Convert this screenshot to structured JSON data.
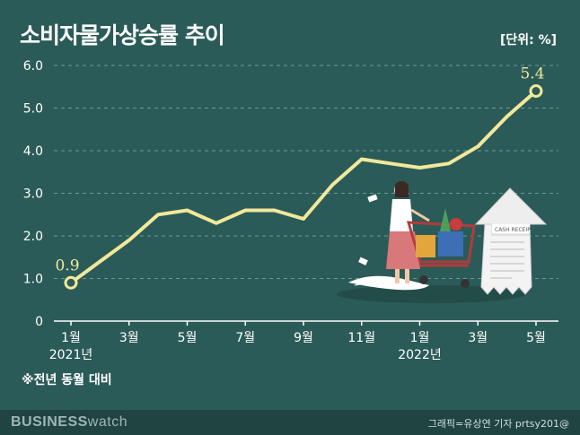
{
  "header": {
    "title": "소비자물가상승률 추이",
    "unit": "[단위: %]"
  },
  "note": "※전년 동월 대비",
  "footer": {
    "brand_bold": "BUSINESS",
    "brand_light": "watch",
    "credit": "그래픽=유상연 기자 prtsy201@"
  },
  "colors": {
    "background": "#2b5b58",
    "line": "#f2e89a",
    "footer": "#1f4442"
  },
  "illustration": "shopping-cart-receipt-illustration",
  "chart_data": {
    "type": "line",
    "title": "소비자물가상승률 추이",
    "xlabel": "",
    "ylabel": "",
    "ylim": [
      0,
      6.0
    ],
    "yticks": [
      "0",
      "1.0",
      "2.0",
      "3.0",
      "4.0",
      "5.0",
      "6.0"
    ],
    "xticks": [
      {
        "index": 0,
        "label": "1월",
        "year": "2021년"
      },
      {
        "index": 2,
        "label": "3월"
      },
      {
        "index": 4,
        "label": "5월"
      },
      {
        "index": 6,
        "label": "7월"
      },
      {
        "index": 8,
        "label": "9월"
      },
      {
        "index": 10,
        "label": "11월"
      },
      {
        "index": 12,
        "label": "1월",
        "year": "2022년"
      },
      {
        "index": 14,
        "label": "3월"
      },
      {
        "index": 16,
        "label": "5월"
      }
    ],
    "x": [
      "2021-01",
      "2021-02",
      "2021-03",
      "2021-04",
      "2021-05",
      "2021-06",
      "2021-07",
      "2021-08",
      "2021-09",
      "2021-10",
      "2021-11",
      "2021-12",
      "2022-01",
      "2022-02",
      "2022-03",
      "2022-04",
      "2022-05"
    ],
    "values": [
      0.9,
      1.4,
      1.9,
      2.5,
      2.6,
      2.3,
      2.6,
      2.6,
      2.4,
      3.2,
      3.8,
      3.7,
      3.6,
      3.7,
      4.1,
      4.8,
      5.4
    ],
    "labels": [
      {
        "index": 0,
        "text": "0.9"
      },
      {
        "index": 16,
        "text": "5.4"
      }
    ],
    "grid": true
  }
}
